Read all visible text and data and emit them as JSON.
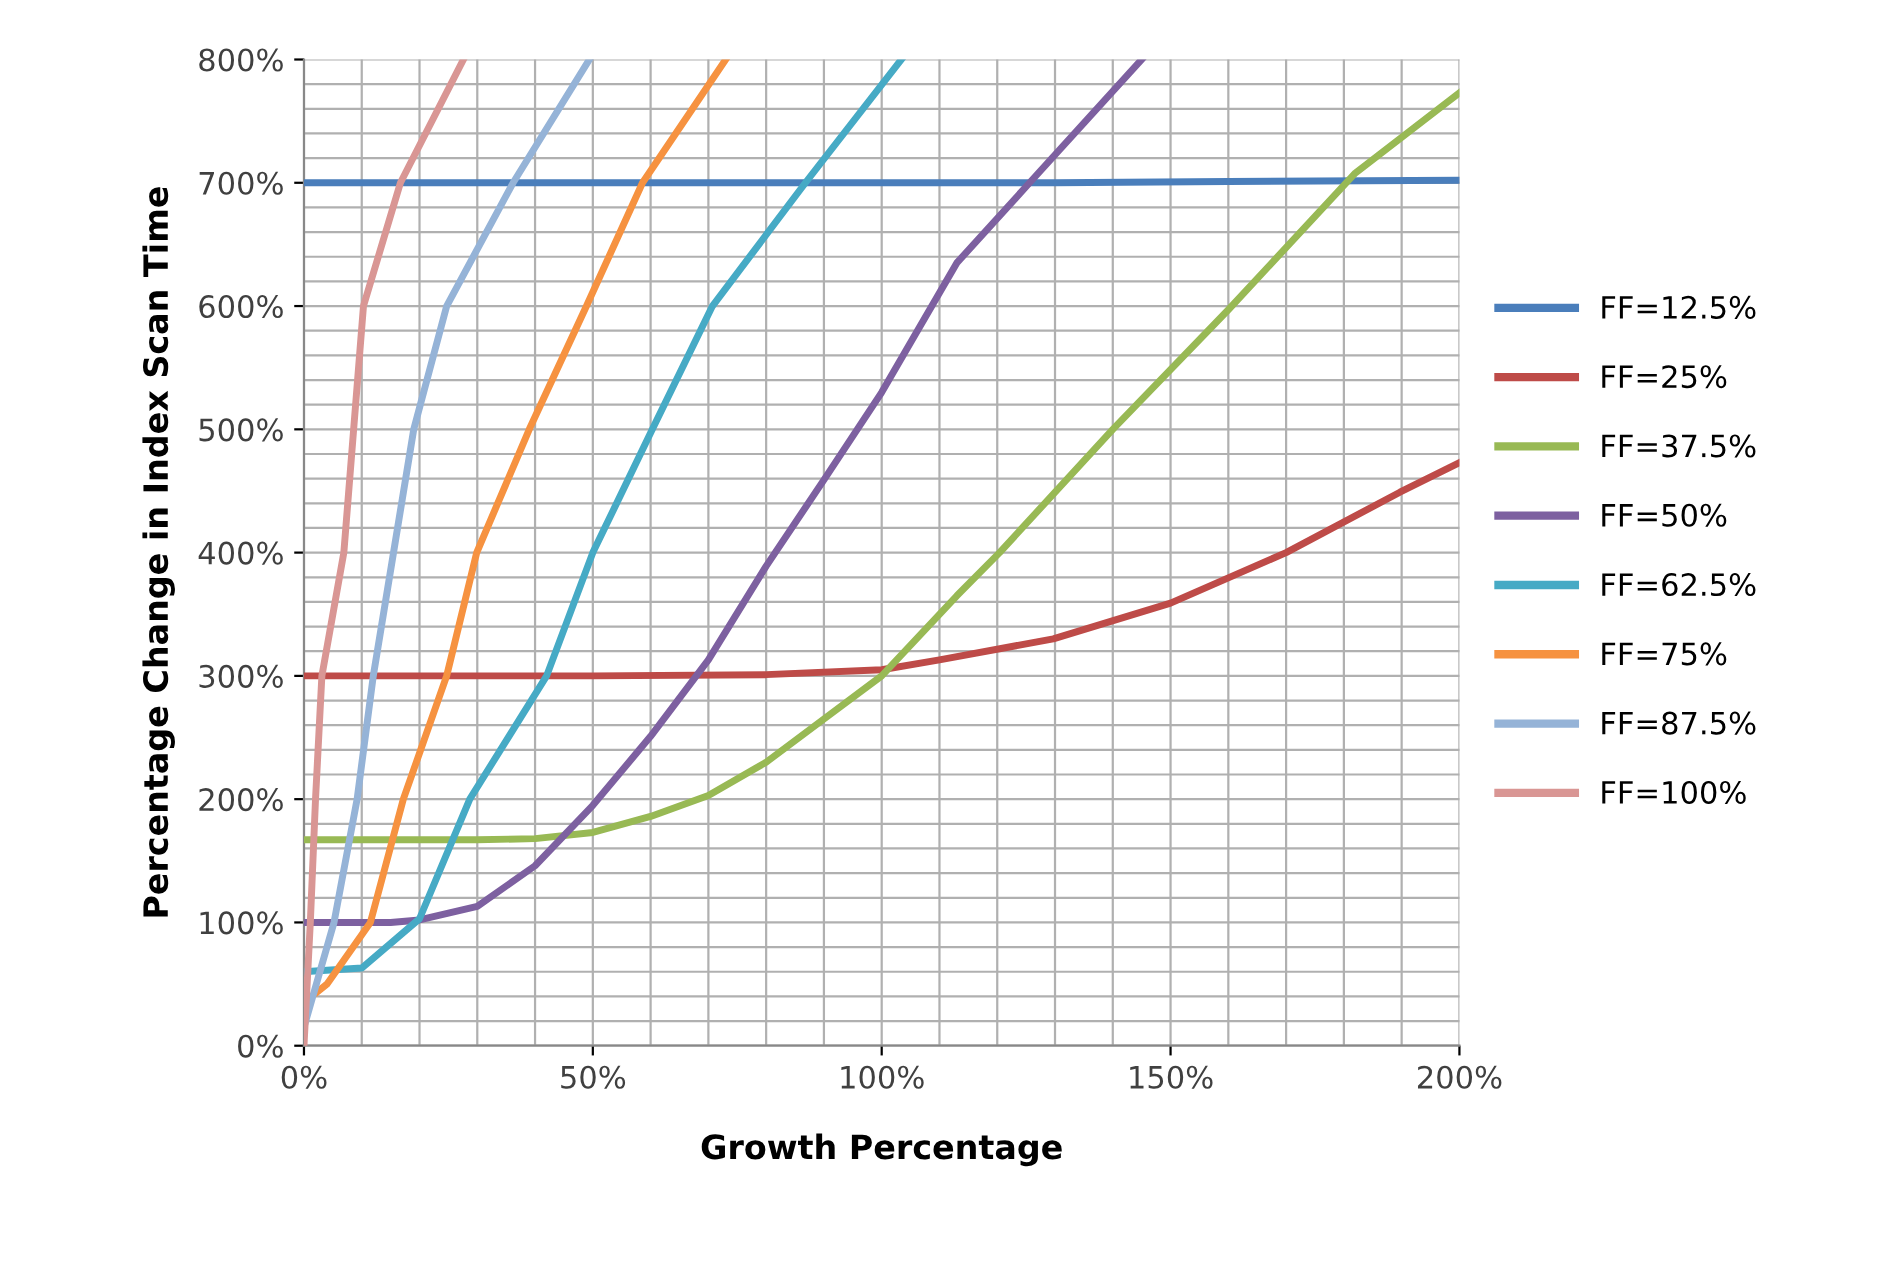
{
  "chart_data": {
    "type": "line",
    "xlabel": "Growth Percentage",
    "ylabel": "Percentage Change in Index Scan Time",
    "xlim": [
      0,
      200
    ],
    "ylim": [
      0,
      800
    ],
    "xticks": [
      {
        "value": 0,
        "label": "0%"
      },
      {
        "value": 10,
        "label": null
      },
      {
        "value": 20,
        "label": null
      },
      {
        "value": 30,
        "label": null
      },
      {
        "value": 40,
        "label": null
      },
      {
        "value": 50,
        "label": "50%"
      },
      {
        "value": 60,
        "label": null
      },
      {
        "value": 70,
        "label": null
      },
      {
        "value": 80,
        "label": null
      },
      {
        "value": 90,
        "label": null
      },
      {
        "value": 100,
        "label": "100%"
      },
      {
        "value": 110,
        "label": null
      },
      {
        "value": 120,
        "label": null
      },
      {
        "value": 130,
        "label": null
      },
      {
        "value": 140,
        "label": null
      },
      {
        "value": 150,
        "label": "150%"
      },
      {
        "value": 160,
        "label": null
      },
      {
        "value": 170,
        "label": null
      },
      {
        "value": 180,
        "label": null
      },
      {
        "value": 190,
        "label": null
      },
      {
        "value": 200,
        "label": "200%"
      }
    ],
    "yticks": [
      {
        "value": 0,
        "label": "0%"
      },
      {
        "value": 20,
        "label": null
      },
      {
        "value": 40,
        "label": null
      },
      {
        "value": 60,
        "label": null
      },
      {
        "value": 80,
        "label": null
      },
      {
        "value": 100,
        "label": "100%"
      },
      {
        "value": 120,
        "label": null
      },
      {
        "value": 140,
        "label": null
      },
      {
        "value": 160,
        "label": null
      },
      {
        "value": 180,
        "label": null
      },
      {
        "value": 200,
        "label": "200%"
      },
      {
        "value": 220,
        "label": null
      },
      {
        "value": 240,
        "label": null
      },
      {
        "value": 260,
        "label": null
      },
      {
        "value": 280,
        "label": null
      },
      {
        "value": 300,
        "label": "300%"
      },
      {
        "value": 320,
        "label": null
      },
      {
        "value": 340,
        "label": null
      },
      {
        "value": 360,
        "label": null
      },
      {
        "value": 380,
        "label": null
      },
      {
        "value": 400,
        "label": "400%"
      },
      {
        "value": 420,
        "label": null
      },
      {
        "value": 440,
        "label": null
      },
      {
        "value": 460,
        "label": null
      },
      {
        "value": 480,
        "label": null
      },
      {
        "value": 500,
        "label": "500%"
      },
      {
        "value": 520,
        "label": null
      },
      {
        "value": 540,
        "label": null
      },
      {
        "value": 560,
        "label": null
      },
      {
        "value": 580,
        "label": null
      },
      {
        "value": 600,
        "label": "600%"
      },
      {
        "value": 620,
        "label": null
      },
      {
        "value": 640,
        "label": null
      },
      {
        "value": 660,
        "label": null
      },
      {
        "value": 680,
        "label": null
      },
      {
        "value": 700,
        "label": "700%"
      },
      {
        "value": 720,
        "label": null
      },
      {
        "value": 740,
        "label": null
      },
      {
        "value": 760,
        "label": null
      },
      {
        "value": 780,
        "label": null
      },
      {
        "value": 800,
        "label": "800%"
      }
    ],
    "grid": true,
    "legend": "right",
    "marker": "none",
    "line_style": "solid",
    "series": [
      {
        "name": "FF=12.5%",
        "color": "#4a7ebb",
        "x": [
          0,
          50,
          100,
          130,
          160,
          200
        ],
        "values": [
          700,
          700,
          700,
          700,
          701,
          702
        ]
      },
      {
        "name": "FF=25%",
        "color": "#be4b48",
        "x": [
          0,
          50,
          80,
          100,
          110,
          129.7,
          150,
          170,
          189.7,
          200
        ],
        "values": [
          300,
          300,
          301,
          305,
          313,
          330,
          359,
          400,
          449,
          473
        ]
      },
      {
        "name": "FF=37.5%",
        "color": "#98b954",
        "x": [
          0,
          30,
          40,
          50,
          60,
          70,
          80,
          90,
          100,
          113,
          120.4,
          140,
          160,
          182,
          200
        ],
        "values": [
          167,
          167,
          168,
          173,
          186,
          203,
          230,
          265,
          300,
          365,
          400,
          500,
          597,
          708,
          773
        ]
      },
      {
        "name": "FF=50%",
        "color": "#7d60a0",
        "x": [
          0,
          15,
          20,
          30,
          40,
          50,
          60,
          70,
          80,
          90,
          100,
          113,
          125.6,
          145
        ],
        "values": [
          100,
          100,
          102,
          113,
          146,
          195,
          251,
          313,
          389,
          459,
          530,
          635,
          700,
          800
        ]
      },
      {
        "name": "FF=62.5%",
        "color": "#46aac5",
        "x": [
          0,
          10,
          20,
          28.7,
          42,
          50,
          60.3,
          70.7,
          86.8,
          103.4
        ],
        "values": [
          60,
          63,
          103,
          200,
          300,
          400,
          500,
          600,
          700,
          800
        ]
      },
      {
        "name": "FF=75%",
        "color": "#f69240",
        "x": [
          0,
          4,
          11.5,
          17.2,
          24.7,
          29.9,
          39,
          48.9,
          58.6,
          73
        ],
        "values": [
          35,
          50,
          100,
          200,
          300,
          400,
          500,
          600,
          700,
          800
        ]
      },
      {
        "name": "FF=87.5%",
        "color": "#95b3d7",
        "x": [
          0,
          5.2,
          9.2,
          12,
          15.5,
          19,
          24.7,
          36.2,
          49.4
        ],
        "values": [
          15,
          100,
          200,
          300,
          400,
          500,
          600,
          700,
          800
        ]
      },
      {
        "name": "FF=100%",
        "color": "#d99694",
        "x": [
          0,
          1.1,
          2,
          3.1,
          6.9,
          8.6,
          10.3,
          16.7,
          27.6
        ],
        "values": [
          0,
          100,
          200,
          300,
          400,
          500,
          600,
          700,
          800
        ]
      }
    ]
  }
}
